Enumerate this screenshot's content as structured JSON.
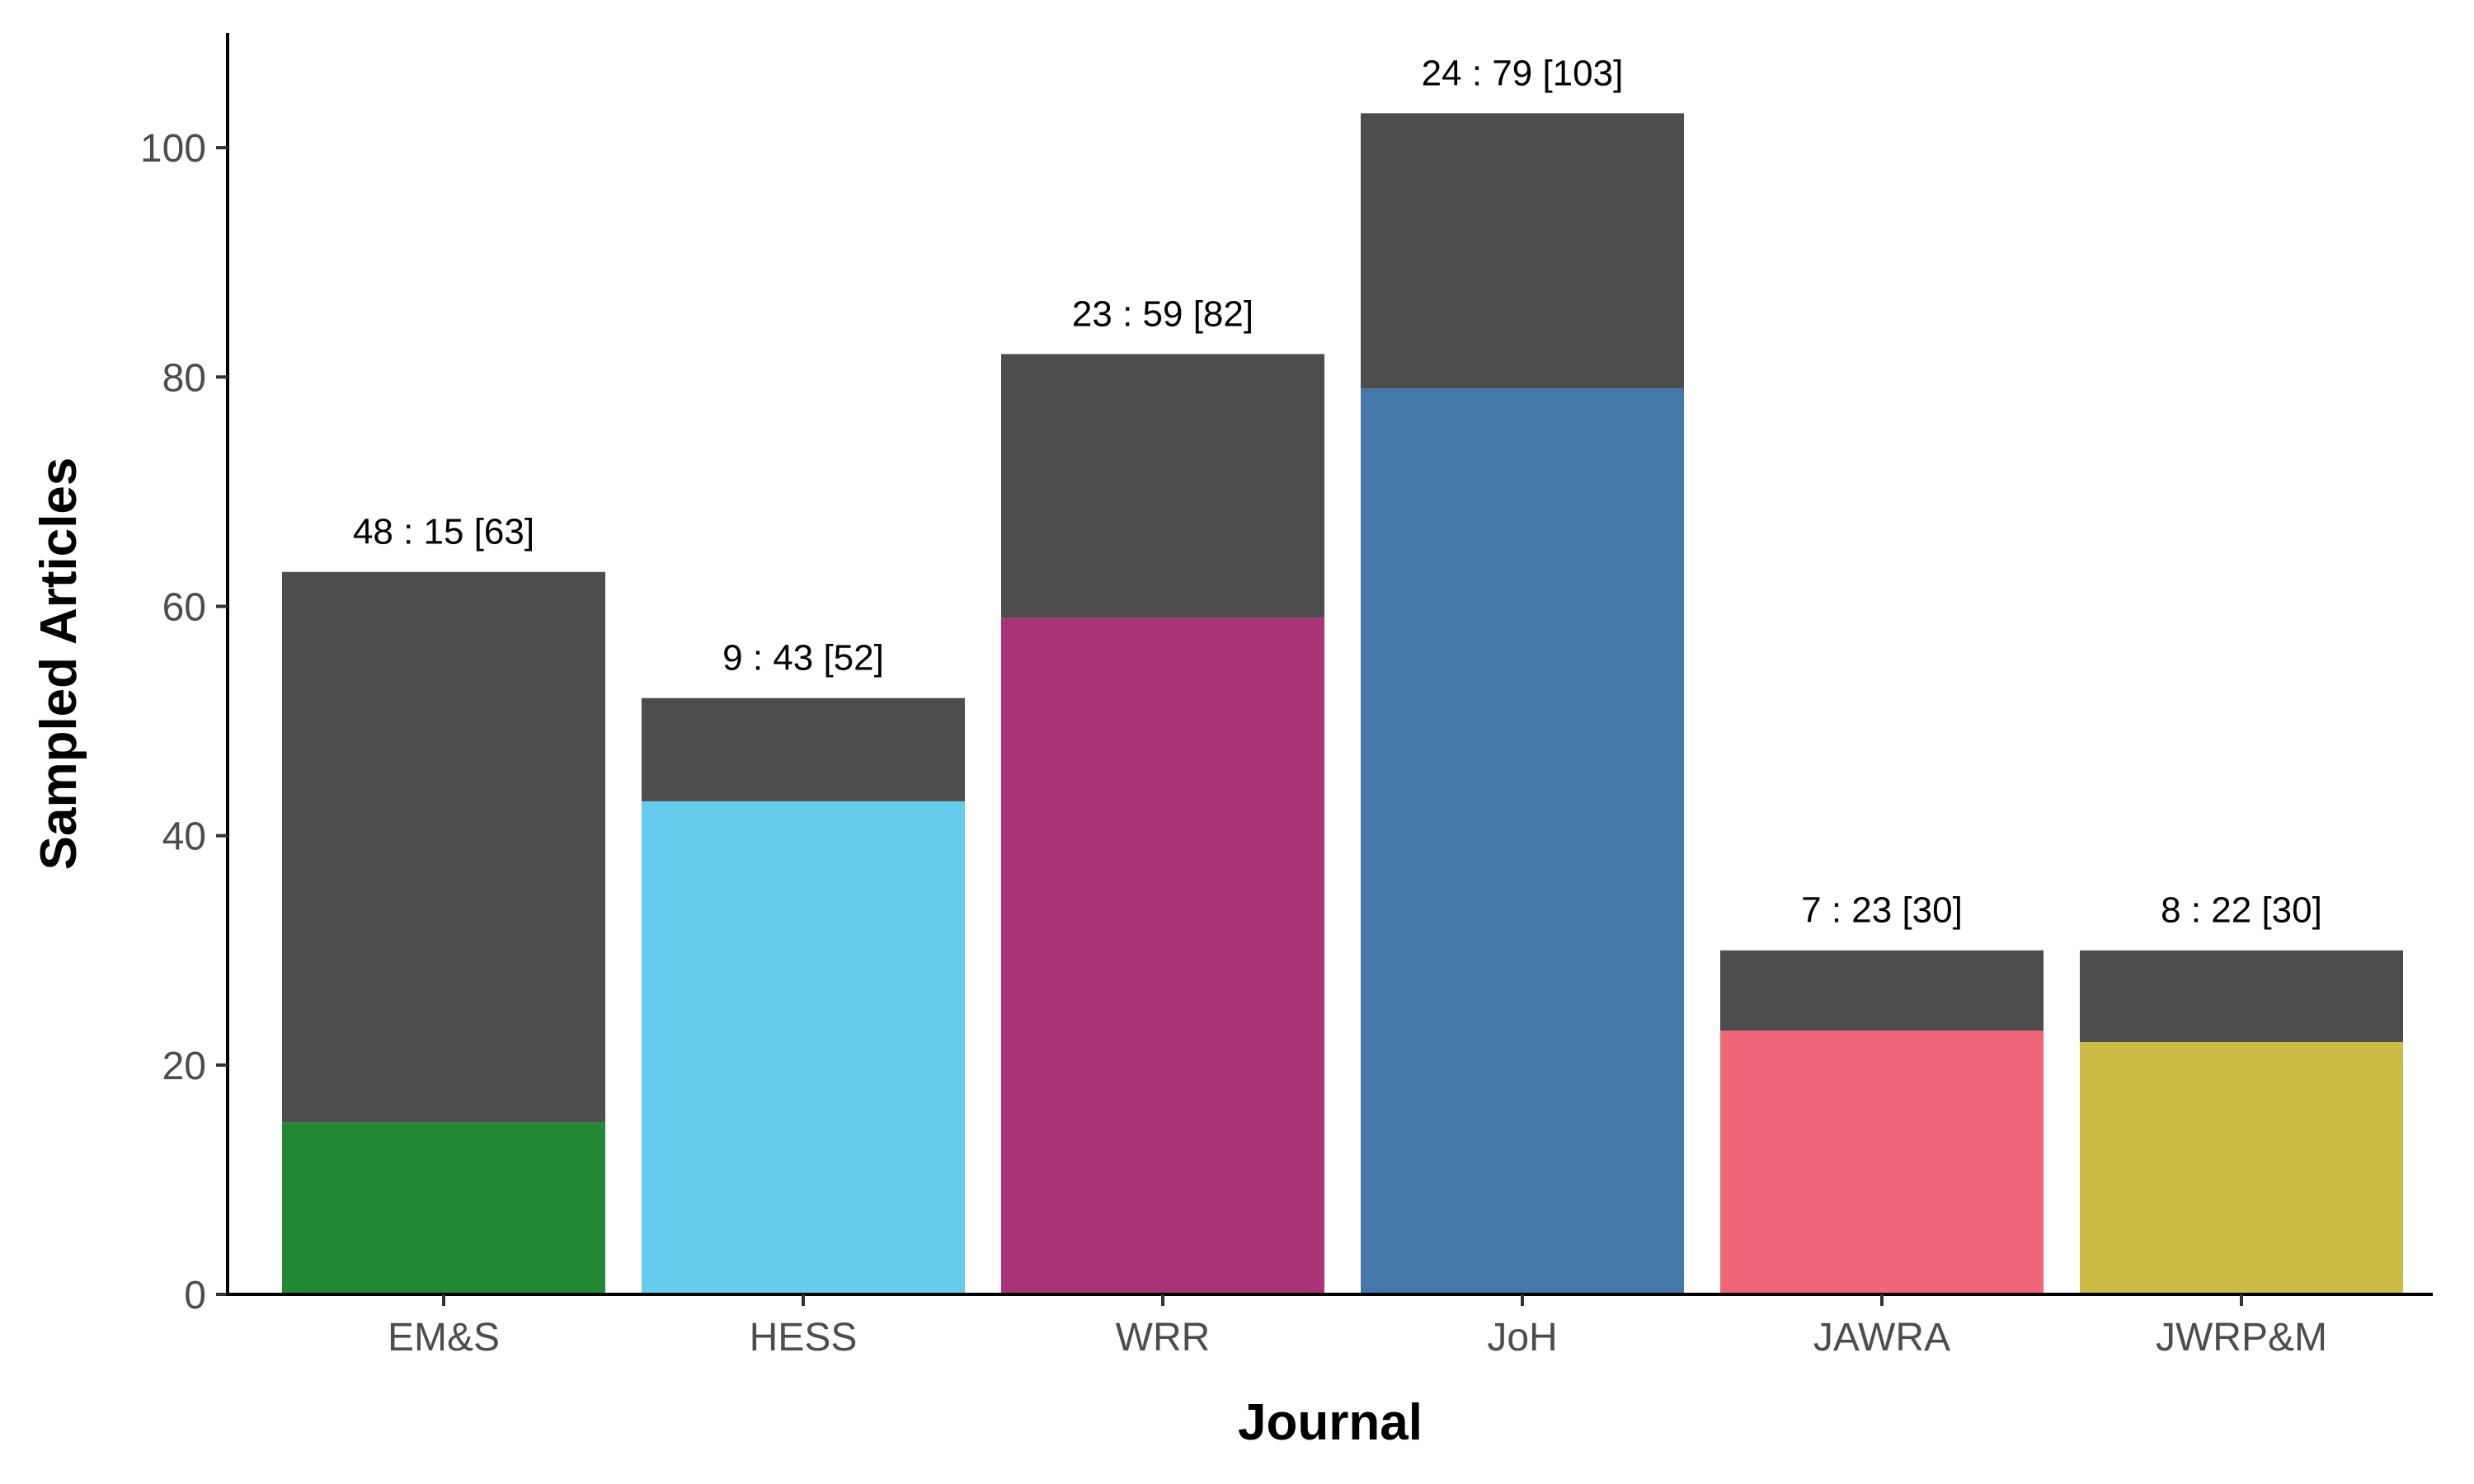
{
  "chart_data": {
    "type": "bar",
    "stacked": true,
    "title": "",
    "xlabel": "Journal",
    "ylabel": "Sampled Articles",
    "ylim": [
      0,
      110
    ],
    "yticks": [
      0,
      20,
      40,
      60,
      80,
      100
    ],
    "grid": false,
    "legend": "none",
    "categories": [
      "EM&S",
      "HESS",
      "WRR",
      "JoH",
      "JAWRA",
      "JWRP&M"
    ],
    "series": [
      {
        "values": [
          15,
          43,
          59,
          79,
          23,
          22
        ],
        "colors": [
          "#228833",
          "#66CCEE",
          "#AA3377",
          "#4477AA",
          "#EE6677",
          "#CCBB44"
        ]
      },
      {
        "values": [
          48,
          9,
          23,
          24,
          7,
          8
        ],
        "color": "#4d4d4d"
      }
    ],
    "totals": [
      63,
      52,
      82,
      103,
      30,
      30
    ],
    "bar_labels": [
      "48 : 15 [63]",
      "9 : 43 [52]",
      "23 : 59 [82]",
      "24 : 79 [103]",
      "7 : 23 [30]",
      "8 : 22 [30]"
    ]
  }
}
